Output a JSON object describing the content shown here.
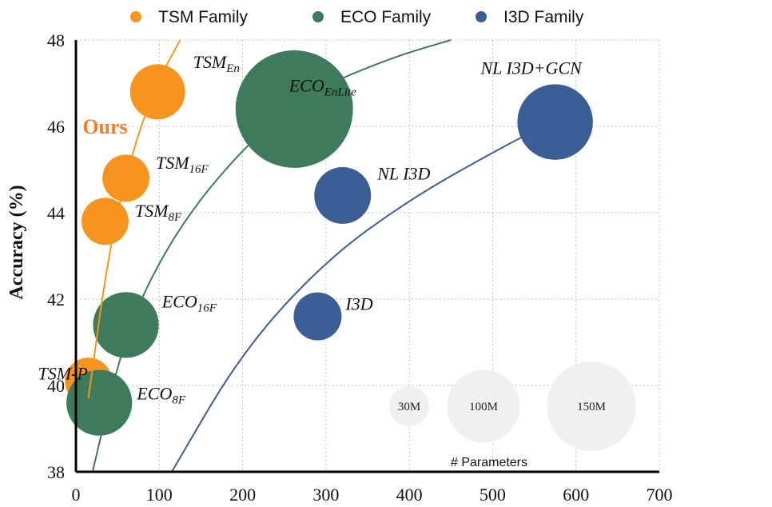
{
  "chart_data": {
    "type": "scatter",
    "title": "",
    "xlabel": "",
    "ylabel": "Accuracy (%)",
    "xlim": [
      0,
      700
    ],
    "ylim": [
      38,
      48
    ],
    "xticks": [
      0,
      100,
      200,
      300,
      400,
      500,
      600,
      700
    ],
    "yticks": [
      38,
      40,
      42,
      44,
      46,
      48
    ],
    "grid": true,
    "legend_position": "top",
    "series": [
      {
        "name": "TSM Family",
        "color": "#F7941D",
        "points": [
          {
            "label": "TSM",
            "sub": "En",
            "x": 98,
            "y": 46.8,
            "size": 33
          },
          {
            "label": "TSM",
            "sub": "16F",
            "x": 60,
            "y": 44.8,
            "size": 24
          },
          {
            "label": "TSM",
            "sub": "8F",
            "x": 35,
            "y": 43.8,
            "size": 24
          },
          {
            "label": "TSM-P",
            "sub": "",
            "x": 15,
            "y": 40.1,
            "size": 24
          }
        ],
        "trend": {
          "color": "#F7941D",
          "points": [
            [
              15,
              39.7
            ],
            [
              40,
              43.2
            ],
            [
              70,
              45.6
            ],
            [
              100,
              47.1
            ],
            [
              125,
              48.0
            ]
          ]
        }
      },
      {
        "name": "ECO Family",
        "color": "#3E7B5C",
        "points": [
          {
            "label": "ECO",
            "sub": "EnLite",
            "x": 262,
            "y": 46.4,
            "size": 150
          },
          {
            "label": "ECO",
            "sub": "16F",
            "x": 60,
            "y": 41.4,
            "size": 47
          },
          {
            "label": "ECO",
            "sub": "8F",
            "x": 28,
            "y": 39.6,
            "size": 47
          }
        ],
        "trend": {
          "color": "#3E7B5C",
          "points": [
            [
              20,
              38.0
            ],
            [
              60,
              41.3
            ],
            [
              120,
              43.6
            ],
            [
              200,
              45.5
            ],
            [
              280,
              46.8
            ],
            [
              380,
              47.6
            ],
            [
              450,
              48.0
            ]
          ]
        }
      },
      {
        "name": "I3D Family",
        "color": "#3C5E96",
        "points": [
          {
            "label": "NL I3D+GCN",
            "sub": "",
            "x": 575,
            "y": 46.1,
            "size": 62
          },
          {
            "label": "NL I3D",
            "sub": "",
            "x": 320,
            "y": 44.4,
            "size": 35
          },
          {
            "label": "I3D",
            "sub": "",
            "x": 290,
            "y": 41.6,
            "size": 25
          }
        ],
        "trend": {
          "color": "#3C5E96",
          "points": [
            [
              115,
              38.0
            ],
            [
              200,
              40.8
            ],
            [
              300,
              42.9
            ],
            [
              400,
              44.3
            ],
            [
              500,
              45.4
            ],
            [
              590,
              46.3
            ]
          ]
        }
      }
    ],
    "annotations": [
      {
        "text": "Ours",
        "x": 35,
        "y": 46.0
      }
    ],
    "size_legend": {
      "title": "# Parameters",
      "items": [
        {
          "label": "30M",
          "size": 30
        },
        {
          "label": "100M",
          "size": 100
        },
        {
          "label": "150M",
          "size": 150
        }
      ]
    }
  }
}
